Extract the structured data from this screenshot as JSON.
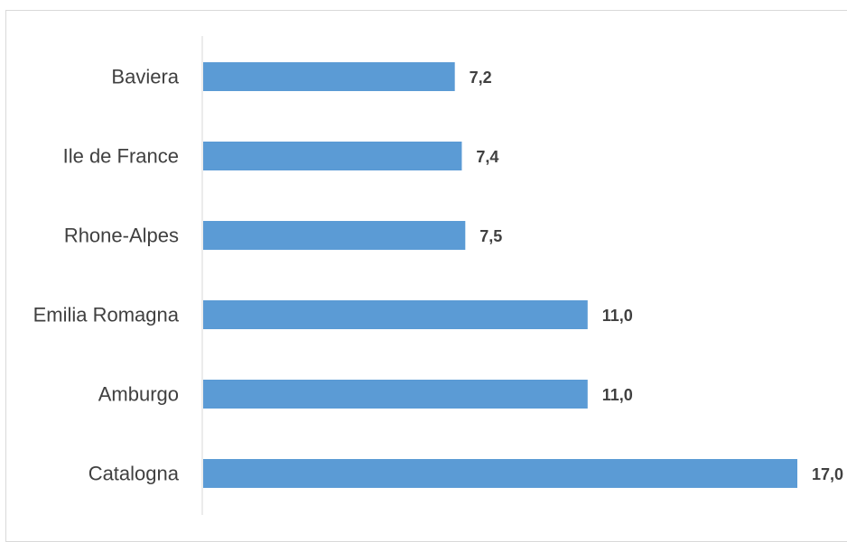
{
  "chart_data": {
    "type": "bar",
    "orientation": "horizontal",
    "categories": [
      "Baviera",
      "Ile de France",
      "Rhone-Alpes",
      "Emilia Romagna",
      "Amburgo",
      "Catalogna"
    ],
    "values": [
      7.2,
      7.4,
      7.5,
      11.0,
      11.0,
      17.0
    ],
    "data_labels": [
      "7,2",
      "7,4",
      "7,5",
      "11,0",
      "11,0",
      "17,0"
    ],
    "xlim": [
      0,
      17
    ],
    "title": "",
    "xlabel": "",
    "ylabel": "",
    "grid": false,
    "legend": "none",
    "bar_color": "#5b9bd5",
    "axis_color": "#d9d9d9",
    "text_color": "#404040"
  }
}
